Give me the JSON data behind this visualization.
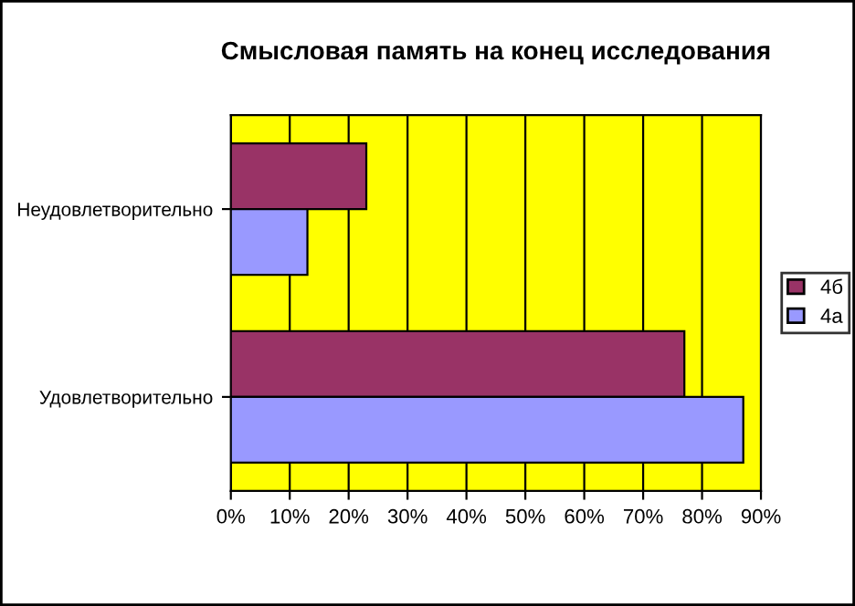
{
  "chart_data": {
    "type": "bar",
    "orientation": "horizontal",
    "title": "Смысловая память на конец исследования",
    "categories": [
      "Неудовлетворительно",
      "Удовлетворительно"
    ],
    "series": [
      {
        "name": "4б",
        "color": "#993366",
        "values": [
          23,
          77
        ]
      },
      {
        "name": "4а",
        "color": "#9999ff",
        "values": [
          13,
          87
        ]
      }
    ],
    "xlim": [
      0,
      90
    ],
    "xticks": [
      {
        "value": 0,
        "label": "0%"
      },
      {
        "value": 10,
        "label": "10%"
      },
      {
        "value": 20,
        "label": "20%"
      },
      {
        "value": 30,
        "label": "30%"
      },
      {
        "value": 40,
        "label": "40%"
      },
      {
        "value": 50,
        "label": "50%"
      },
      {
        "value": 60,
        "label": "60%"
      },
      {
        "value": 70,
        "label": "70%"
      },
      {
        "value": 80,
        "label": "80%"
      },
      {
        "value": 90,
        "label": "90%"
      }
    ],
    "grid": "x",
    "legend": "right"
  }
}
